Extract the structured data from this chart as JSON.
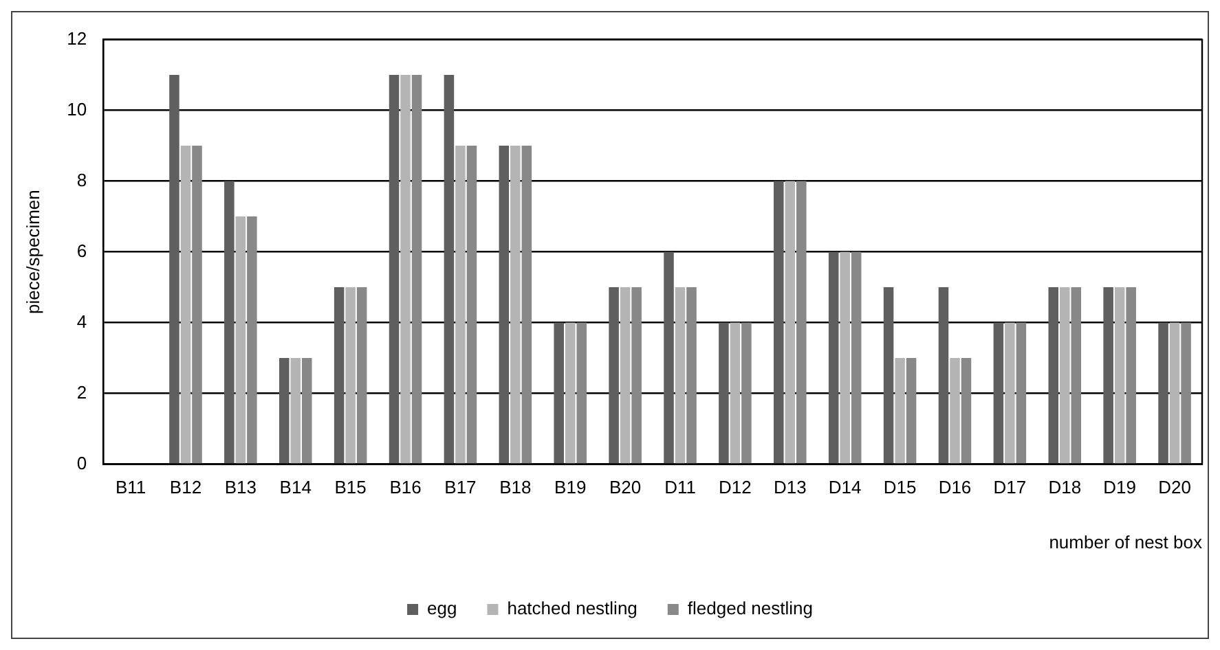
{
  "chart_data": {
    "type": "bar",
    "xlabel": "number of nest box",
    "ylabel": "piece/specimen",
    "categories": [
      "B11",
      "B12",
      "B13",
      "B14",
      "B15",
      "B16",
      "B17",
      "B18",
      "B19",
      "B20",
      "D11",
      "D12",
      "D13",
      "D14",
      "D15",
      "D16",
      "D17",
      "D18",
      "D19",
      "D20"
    ],
    "series": [
      {
        "name": "egg",
        "color": "#5f5f5f",
        "values": [
          0,
          11,
          8,
          3,
          5,
          11,
          11,
          9,
          4,
          5,
          6,
          4,
          8,
          6,
          5,
          5,
          4,
          5,
          5,
          4
        ]
      },
      {
        "name": "hatched nestling",
        "color": "#b4b4b4",
        "values": [
          0,
          9,
          7,
          3,
          5,
          11,
          9,
          9,
          4,
          5,
          5,
          4,
          8,
          6,
          3,
          3,
          4,
          5,
          5,
          4
        ]
      },
      {
        "name": "fledged nestling",
        "color": "#888888",
        "values": [
          0,
          9,
          7,
          3,
          5,
          11,
          9,
          9,
          4,
          5,
          5,
          4,
          8,
          6,
          3,
          3,
          4,
          5,
          5,
          4
        ]
      }
    ],
    "ylim": [
      0,
      12
    ],
    "yticks": [
      0,
      2,
      4,
      6,
      8,
      10,
      12
    ],
    "grid": "y",
    "legend": "bottom"
  }
}
